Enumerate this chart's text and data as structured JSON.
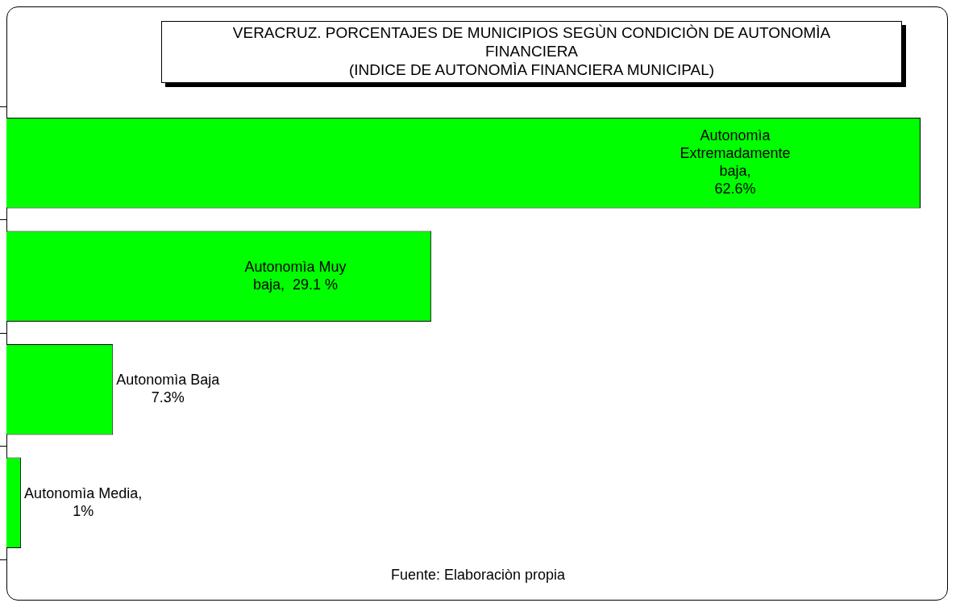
{
  "chart_data": {
    "type": "bar",
    "orientation": "horizontal",
    "title": "VERACRUZ. PORCENTAJES DE MUNICIPIOS SEGÙN CONDICIÒN DE AUTONOMÌA FINANCIERA",
    "subtitle": "(INDICE DE AUTONOMÌA FINANCIERA MUNICIPAL)",
    "categories": [
      null,
      null,
      null,
      null
    ],
    "values": [
      62.6,
      29.1,
      7.3,
      1
    ],
    "color": "#00ff00",
    "value_labels": [
      "Autonomìa\nExtremadamente\nbaja,\n62.6%",
      "Autonomìa Muy\nbaja,  29.1 %",
      "Autonomìa Baja\n7.3%",
      "Autonomìa Media,\n1%"
    ],
    "annotations": [
      "Fuente: Elaboraciòn propia"
    ],
    "legend": false
  }
}
